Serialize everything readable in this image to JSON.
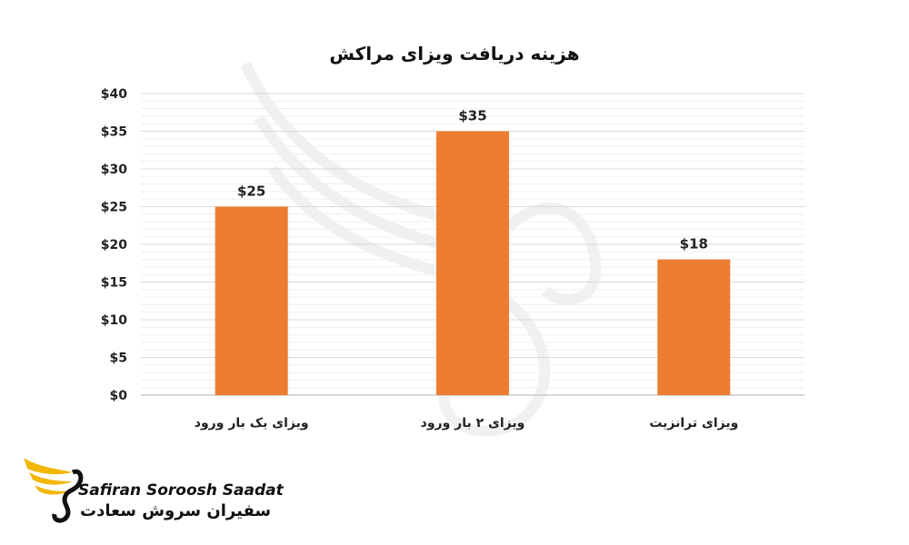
{
  "chart_data": {
    "type": "bar",
    "title": "هزینه دریافت ویزای مراکش",
    "categories": [
      "ویزای یک بار ورود",
      "ویزای ۲ بار ورود",
      "ویزای ترانزیت"
    ],
    "values": [
      25,
      35,
      18
    ],
    "value_labels": [
      "$25",
      "$35",
      "$18"
    ],
    "yticks": [
      0,
      5,
      10,
      15,
      20,
      25,
      30,
      35,
      40
    ],
    "ytick_labels": [
      "$0",
      "$5",
      "$10",
      "$15",
      "$20",
      "$25",
      "$30",
      "$35",
      "$40"
    ],
    "ylim": [
      0,
      40
    ],
    "grid": true,
    "bar_color": "#ED7D31"
  },
  "logo": {
    "name_en": "Safiran Soroosh Saadat",
    "name_fa": "سفیران سروش سعادت",
    "accent_color": "#F2B705"
  }
}
